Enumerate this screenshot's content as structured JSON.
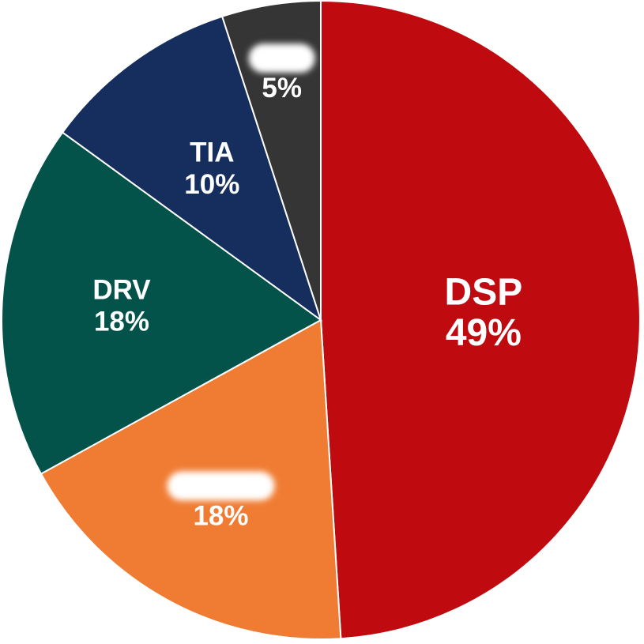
{
  "chart_data": {
    "type": "pie",
    "title": "",
    "start_angle_deg": 0,
    "direction": "clockwise",
    "slices": [
      {
        "label": "DSP",
        "value": 49,
        "value_label": "49%",
        "color": "#BF0A10",
        "label_size": "large"
      },
      {
        "label": "",
        "value": 18,
        "value_label": "18%",
        "color": "#F07C33",
        "redacted": true
      },
      {
        "label": "DRV",
        "value": 18,
        "value_label": "18%",
        "color": "#04534A"
      },
      {
        "label": "TIA",
        "value": 10,
        "value_label": "10%",
        "color": "#162E5E"
      },
      {
        "label": "",
        "value": 5,
        "value_label": "5%",
        "color": "#353535",
        "redacted": true
      }
    ],
    "slice_border_color": "#ffffff",
    "redaction_color": "#ffffff"
  }
}
